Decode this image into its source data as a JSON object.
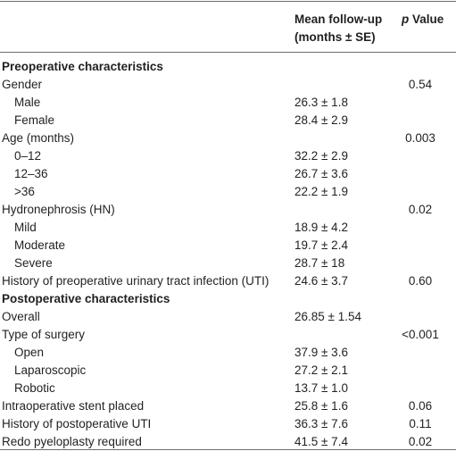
{
  "header": {
    "mean": [
      "Mean follow-up",
      "(months ± SE)"
    ],
    "p_value": [
      "p",
      "Value"
    ]
  },
  "rows": [
    {
      "kind": "section",
      "label": "Preoperative characteristics"
    },
    {
      "kind": "item",
      "label": "Gender",
      "p": "0.54"
    },
    {
      "kind": "sub",
      "label": "Male",
      "mean": "26.3 ± 1.8"
    },
    {
      "kind": "sub",
      "label": "Female",
      "mean": "28.4 ± 2.9"
    },
    {
      "kind": "item",
      "label": "Age (months)",
      "p": "0.003"
    },
    {
      "kind": "sub",
      "label": "0–12",
      "mean": "32.2 ± 2.9"
    },
    {
      "kind": "sub",
      "label": "12–36",
      "mean": "26.7 ± 3.6"
    },
    {
      "kind": "sub",
      "label": ">36",
      "mean": "22.2 ± 1.9"
    },
    {
      "kind": "item",
      "label": "Hydronephrosis (HN)",
      "p": "0.02"
    },
    {
      "kind": "sub",
      "label": "Mild",
      "mean": "18.9 ± 4.2"
    },
    {
      "kind": "sub",
      "label": "Moderate",
      "mean": "19.7 ± 2.4"
    },
    {
      "kind": "sub",
      "label": "Severe",
      "mean": "28.7 ± 18"
    },
    {
      "kind": "item",
      "label": "History of preoperative urinary tract infection (UTI)",
      "mean": "24.6 ± 3.7",
      "p": "0.60"
    },
    {
      "kind": "section",
      "label": "Postoperative characteristics"
    },
    {
      "kind": "item",
      "label": "Overall",
      "mean": "26.85 ± 1.54"
    },
    {
      "kind": "item",
      "label": "Type of surgery",
      "p": "<0.001"
    },
    {
      "kind": "sub",
      "label": "Open",
      "mean": "37.9 ± 3.6"
    },
    {
      "kind": "sub",
      "label": "Laparoscopic",
      "mean": "27.2 ± 2.1"
    },
    {
      "kind": "sub",
      "label": "Robotic",
      "mean": "13.7 ± 1.0"
    },
    {
      "kind": "item",
      "label": "Intraoperative stent placed",
      "mean": "25.8 ± 1.6",
      "p": "0.06"
    },
    {
      "kind": "item",
      "label": "History of postoperative UTI",
      "mean": "36.3 ± 7.6",
      "p": "0.11"
    },
    {
      "kind": "item",
      "label": "Redo pyeloplasty required",
      "mean": "41.5 ± 7.4",
      "p": "0.02"
    }
  ]
}
